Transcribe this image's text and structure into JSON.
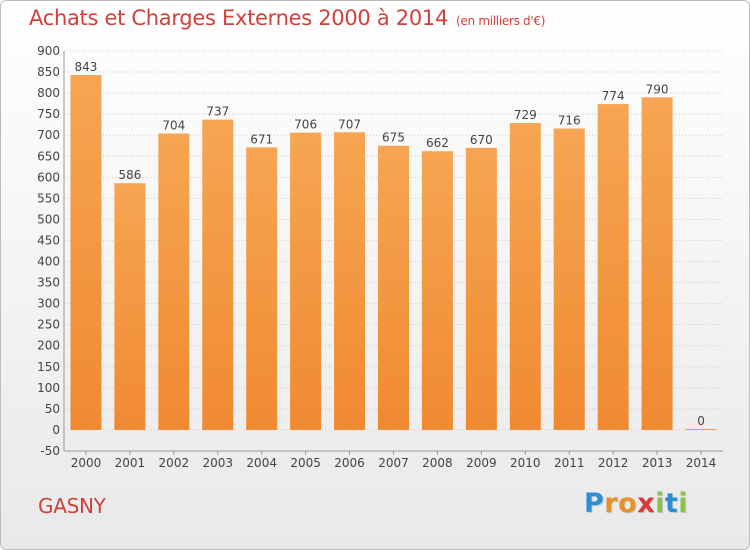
{
  "title": "Achats et Charges Externes 2000 à 2014",
  "unit_note": "(en milliers d'€)",
  "commune": "GASNY",
  "logo": {
    "letters": [
      "P",
      "r",
      "o",
      "x",
      "i",
      "t",
      "i"
    ],
    "colors": [
      "#2b8fd6",
      "#e8912a",
      "#e8912a",
      "#d63a3a",
      "#8bc34a",
      "#2b8fd6",
      "#8bc34a"
    ]
  },
  "colors": {
    "bar": "#f08a32",
    "bar_top": "#f6a552",
    "text": "#d0413c",
    "axis_text": "#444444",
    "grid": "#cccccc"
  },
  "chart_data": {
    "type": "bar",
    "title": "Achats et Charges Externes 2000 à 2014",
    "categories": [
      "2000",
      "2001",
      "2002",
      "2003",
      "2004",
      "2005",
      "2006",
      "2007",
      "2008",
      "2009",
      "2010",
      "2011",
      "2012",
      "2013",
      "2014"
    ],
    "values": [
      843,
      586,
      704,
      737,
      671,
      706,
      707,
      675,
      662,
      670,
      729,
      716,
      774,
      790,
      0
    ],
    "ylim": [
      -50,
      900
    ],
    "yticks": [
      -50,
      0,
      50,
      100,
      150,
      200,
      250,
      300,
      350,
      400,
      450,
      500,
      550,
      600,
      650,
      700,
      750,
      800,
      850,
      900
    ],
    "grid": true
  }
}
